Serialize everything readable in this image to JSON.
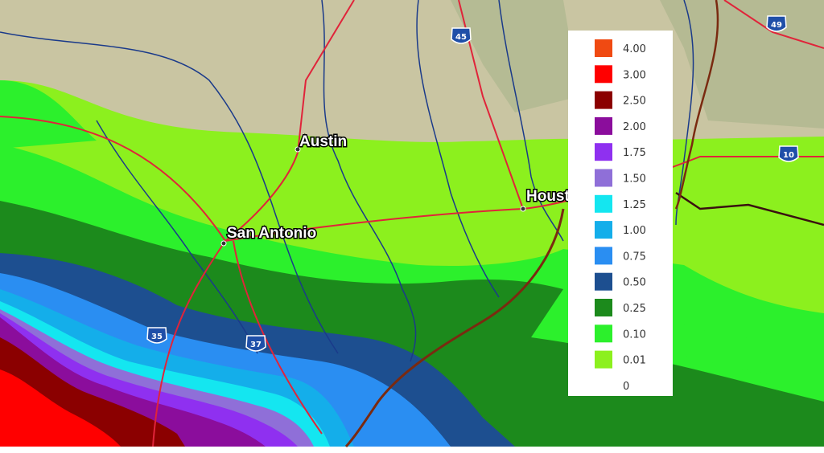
{
  "cities": [
    {
      "label": "Austin"
    },
    {
      "label": "San Antonio"
    },
    {
      "label": "Houston"
    }
  ],
  "highways": [
    "45",
    "49",
    "10",
    "35",
    "37"
  ],
  "legend": {
    "items": [
      {
        "label": "4.00",
        "color": "#f04a12"
      },
      {
        "label": "3.00",
        "color": "#ff0000"
      },
      {
        "label": "2.50",
        "color": "#8b0000"
      },
      {
        "label": "2.00",
        "color": "#8b0d9c"
      },
      {
        "label": "1.75",
        "color": "#8f30f0"
      },
      {
        "label": "1.50",
        "color": "#8f6fd8"
      },
      {
        "label": "1.25",
        "color": "#14e6f0"
      },
      {
        "label": "1.00",
        "color": "#14aeea"
      },
      {
        "label": "0.75",
        "color": "#2a8ef2"
      },
      {
        "label": "0.50",
        "color": "#1d4f90"
      },
      {
        "label": "0.25",
        "color": "#1c8a1c"
      },
      {
        "label": "0.10",
        "color": "#2cf02c"
      },
      {
        "label": "0.01",
        "color": "#8cf01e"
      },
      {
        "label": "0",
        "color": "#ffffff"
      }
    ]
  }
}
